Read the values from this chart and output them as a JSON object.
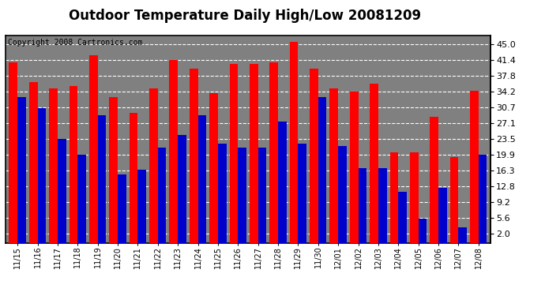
{
  "title": "Outdoor Temperature Daily High/Low 20081209",
  "copyright": "Copyright 2008 Cartronics.com",
  "dates": [
    "11/15",
    "11/16",
    "11/17",
    "11/18",
    "11/19",
    "11/20",
    "11/21",
    "11/22",
    "11/23",
    "11/24",
    "11/25",
    "11/26",
    "11/27",
    "11/28",
    "11/29",
    "11/30",
    "12/01",
    "12/02",
    "12/03",
    "12/04",
    "12/05",
    "12/06",
    "12/07",
    "12/08"
  ],
  "highs": [
    41.0,
    36.5,
    35.0,
    35.5,
    42.5,
    33.0,
    29.5,
    35.0,
    41.5,
    39.5,
    34.0,
    40.5,
    40.5,
    41.0,
    45.5,
    39.5,
    35.0,
    34.2,
    36.0,
    20.5,
    20.5,
    28.5,
    19.5,
    34.5
  ],
  "lows": [
    33.0,
    30.5,
    23.5,
    20.0,
    29.0,
    15.5,
    16.5,
    21.5,
    24.5,
    29.0,
    22.5,
    21.5,
    21.5,
    27.5,
    22.5,
    33.0,
    22.0,
    17.0,
    17.0,
    11.5,
    5.5,
    12.5,
    3.5,
    20.0
  ],
  "ytick_vals": [
    2.0,
    5.6,
    9.2,
    12.8,
    16.3,
    19.9,
    23.5,
    27.1,
    30.7,
    34.2,
    37.8,
    41.4,
    45.0
  ],
  "ytick_labels": [
    "2.0",
    "5.6",
    "9.2",
    "12.8",
    "16.3",
    "19.9",
    "23.5",
    "27.1",
    "30.7",
    "34.2",
    "37.8",
    "41.4",
    "45.0"
  ],
  "ylim_min": 0,
  "ylim_max": 47,
  "bar_color_high": "#ff0000",
  "bar_color_low": "#0000cc",
  "plot_bg_color": "#808080",
  "fig_bg_color": "#ffffff",
  "border_color": "#000000",
  "title_fontsize": 12,
  "copyright_fontsize": 7,
  "bar_width": 0.42,
  "tick_fontsize": 8
}
